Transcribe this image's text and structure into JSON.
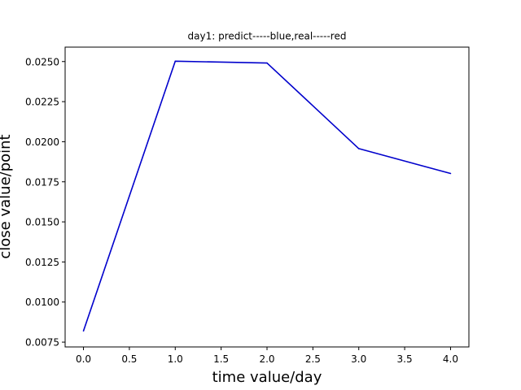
{
  "chart_data": {
    "type": "line",
    "title": "day1: predict-----blue,real-----red",
    "xlabel": "time value/day",
    "ylabel": "close value/point",
    "xlim": [
      -0.2,
      4.2
    ],
    "ylim": [
      0.0072,
      0.0259
    ],
    "xticks": [
      0.0,
      0.5,
      1.0,
      1.5,
      2.0,
      2.5,
      3.0,
      3.5,
      4.0
    ],
    "xtick_labels": [
      "0.0",
      "0.5",
      "1.0",
      "1.5",
      "2.0",
      "2.5",
      "3.0",
      "3.5",
      "4.0"
    ],
    "yticks": [
      0.0075,
      0.01,
      0.0125,
      0.015,
      0.0175,
      0.02,
      0.0225,
      0.025
    ],
    "ytick_labels": [
      "0.0075",
      "0.0100",
      "0.0125",
      "0.0150",
      "0.0175",
      "0.0200",
      "0.0225",
      "0.0250"
    ],
    "grid": false,
    "series": [
      {
        "color": "#0000cc",
        "x": [
          0,
          1,
          2,
          3,
          4
        ],
        "y": [
          0.0082,
          0.02502,
          0.02491,
          0.01957,
          0.01802
        ]
      }
    ]
  }
}
